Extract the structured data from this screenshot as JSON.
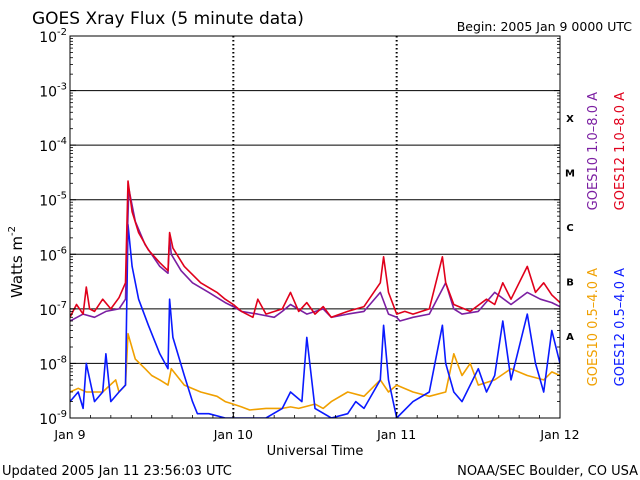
{
  "chart_data": {
    "type": "line",
    "title": "GOES Xray Flux (5 minute data)",
    "begin_label": "Begin:  2005 Jan 9 0000 UTC",
    "xlabel": "Universal Time",
    "ylabel_main": "Watts m",
    "ylabel_exp": "-2",
    "y_scale": "log",
    "ylim": [
      1e-09,
      0.01
    ],
    "y_ticks": [
      {
        "base": "10",
        "exp": "-2",
        "value": 0.01
      },
      {
        "base": "10",
        "exp": "-3",
        "value": 0.001
      },
      {
        "base": "10",
        "exp": "-4",
        "value": 0.0001
      },
      {
        "base": "10",
        "exp": "-5",
        "value": 1e-05
      },
      {
        "base": "10",
        "exp": "-6",
        "value": 1e-06
      },
      {
        "base": "10",
        "exp": "-7",
        "value": 1e-07
      },
      {
        "base": "10",
        "exp": "-8",
        "value": 1e-08
      },
      {
        "base": "10",
        "exp": "-9",
        "value": 1e-09
      }
    ],
    "x_unit": "day since 2005 Jan 9 00:00 UTC",
    "xlim": [
      0,
      3
    ],
    "x_ticks": [
      {
        "label": "Jan 9",
        "value": 0
      },
      {
        "label": "Jan 10",
        "value": 1
      },
      {
        "label": "Jan 11",
        "value": 2
      },
      {
        "label": "Jan 12",
        "value": 3
      }
    ],
    "grid": true,
    "flare_classes": [
      {
        "label": "X",
        "value": 0.0001
      },
      {
        "label": "M",
        "value": 1e-05
      },
      {
        "label": "C",
        "value": 1e-06
      },
      {
        "label": "B",
        "value": 1e-07
      },
      {
        "label": "A",
        "value": 1e-08
      }
    ],
    "series": [
      {
        "name": "GOES10 1.0–8.0 A",
        "color": "#7b1fa2",
        "x": [
          0,
          0.08,
          0.15,
          0.22,
          0.3,
          0.34,
          0.36,
          0.4,
          0.46,
          0.55,
          0.6,
          0.61,
          0.62,
          0.68,
          0.75,
          0.85,
          0.95,
          1.0,
          1.05,
          1.15,
          1.25,
          1.3,
          1.35,
          1.45,
          1.55,
          1.6,
          1.7,
          1.8,
          1.9,
          1.95,
          2.0,
          2.02,
          2.1,
          2.2,
          2.3,
          2.35,
          2.4,
          2.5,
          2.6,
          2.7,
          2.8,
          2.88,
          2.95,
          3.0
        ],
        "y": [
          6e-08,
          8e-08,
          7e-08,
          9e-08,
          1e-07,
          1.5e-07,
          1.6e-05,
          4e-06,
          1.5e-06,
          6e-07,
          4.5e-07,
          2e-06,
          1e-06,
          5e-07,
          3e-07,
          2e-07,
          1.3e-07,
          1.1e-07,
          9e-08,
          8e-08,
          7e-08,
          9e-08,
          1.2e-07,
          8e-08,
          1e-07,
          7e-08,
          8e-08,
          9e-08,
          2e-07,
          8e-08,
          7e-08,
          6e-08,
          7e-08,
          8e-08,
          3e-07,
          1e-07,
          8e-08,
          9e-08,
          2e-07,
          1.2e-07,
          2e-07,
          1.5e-07,
          1.3e-07,
          1.1e-07
        ]
      },
      {
        "name": "GOES12 1.0–8.0 A",
        "color": "#e0001b",
        "x": [
          0,
          0.04,
          0.08,
          0.1,
          0.12,
          0.15,
          0.2,
          0.25,
          0.3,
          0.34,
          0.355,
          0.38,
          0.42,
          0.48,
          0.55,
          0.6,
          0.61,
          0.63,
          0.7,
          0.8,
          0.9,
          0.95,
          1.0,
          1.05,
          1.12,
          1.15,
          1.2,
          1.3,
          1.35,
          1.4,
          1.45,
          1.5,
          1.55,
          1.6,
          1.7,
          1.8,
          1.9,
          1.92,
          1.95,
          2.0,
          2.05,
          2.1,
          2.2,
          2.28,
          2.3,
          2.35,
          2.45,
          2.55,
          2.6,
          2.65,
          2.7,
          2.8,
          2.85,
          2.9,
          2.95,
          3.0
        ],
        "y": [
          7e-08,
          1.2e-07,
          8e-08,
          2.5e-07,
          1e-07,
          9e-08,
          1.5e-07,
          1e-07,
          1.6e-07,
          3e-07,
          2.2e-05,
          6e-06,
          2.5e-06,
          1.2e-06,
          7e-07,
          5e-07,
          2.5e-06,
          1.3e-06,
          6e-07,
          3e-07,
          2e-07,
          1.5e-07,
          1.2e-07,
          9e-08,
          7e-08,
          1.5e-07,
          8e-08,
          1e-07,
          2e-07,
          9e-08,
          1.3e-07,
          8e-08,
          1.1e-07,
          7e-08,
          9e-08,
          1.1e-07,
          3e-07,
          9e-07,
          2e-07,
          8e-08,
          9e-08,
          8e-08,
          1e-07,
          9e-07,
          3e-07,
          1.2e-07,
          9e-08,
          1.5e-07,
          1.2e-07,
          3e-07,
          1.5e-07,
          6e-07,
          2e-07,
          3e-07,
          1.8e-07,
          1.3e-07
        ]
      },
      {
        "name": "GOES10 0.5–4.0 A",
        "color": "#f0a000",
        "x": [
          0,
          0.05,
          0.1,
          0.2,
          0.28,
          0.3,
          0.34,
          0.355,
          0.4,
          0.46,
          0.5,
          0.55,
          0.6,
          0.62,
          0.7,
          0.8,
          0.9,
          0.95,
          1.0,
          1.05,
          1.1,
          1.2,
          1.3,
          1.35,
          1.4,
          1.5,
          1.55,
          1.6,
          1.7,
          1.8,
          1.9,
          1.95,
          2.0,
          2.1,
          2.2,
          2.3,
          2.35,
          2.4,
          2.45,
          2.5,
          2.6,
          2.7,
          2.8,
          2.9,
          2.95,
          3.0
        ],
        "y": [
          3e-09,
          3.5e-09,
          3e-09,
          3e-09,
          5e-09,
          3e-09,
          4e-09,
          3.5e-08,
          1.2e-08,
          8e-09,
          6e-09,
          5e-09,
          4e-09,
          8e-09,
          4e-09,
          3e-09,
          2.5e-09,
          2e-09,
          1.8e-09,
          1.6e-09,
          1.4e-09,
          1.5e-09,
          1.5e-09,
          1.6e-09,
          1.5e-09,
          1.8e-09,
          1.5e-09,
          2e-09,
          3e-09,
          2.5e-09,
          5e-09,
          3e-09,
          4e-09,
          3e-09,
          2.5e-09,
          3e-09,
          1.5e-08,
          6e-09,
          1e-08,
          4e-09,
          5e-09,
          8e-09,
          6e-09,
          5e-09,
          7e-09,
          6e-09
        ]
      },
      {
        "name": "GOES12 0.5–4.0 A",
        "color": "#0a1aff",
        "x": [
          0,
          0.05,
          0.08,
          0.1,
          0.15,
          0.2,
          0.22,
          0.25,
          0.3,
          0.34,
          0.355,
          0.38,
          0.42,
          0.48,
          0.55,
          0.6,
          0.61,
          0.63,
          0.7,
          0.75,
          0.78,
          0.85,
          0.95,
          1.0,
          1.2,
          1.3,
          1.35,
          1.42,
          1.45,
          1.5,
          1.6,
          1.7,
          1.75,
          1.8,
          1.9,
          1.92,
          1.95,
          2.0,
          2.1,
          2.2,
          2.28,
          2.3,
          2.35,
          2.4,
          2.5,
          2.55,
          2.6,
          2.65,
          2.7,
          2.8,
          2.85,
          2.9,
          2.95,
          3.0
        ],
        "y": [
          2e-09,
          3e-09,
          1.5e-09,
          1e-08,
          2e-09,
          3e-09,
          1.5e-08,
          2e-09,
          3e-09,
          4e-09,
          3.5e-06,
          6e-07,
          1.5e-07,
          5e-08,
          1.5e-08,
          8e-09,
          1.5e-07,
          3e-08,
          6e-09,
          2e-09,
          1.2e-09,
          1.2e-09,
          1e-09,
          1e-09,
          1e-09,
          1.5e-09,
          3e-09,
          2e-09,
          3e-08,
          1.5e-09,
          1e-09,
          1.2e-09,
          2e-09,
          1.5e-09,
          5e-09,
          5e-08,
          5e-09,
          1e-09,
          2e-09,
          3e-09,
          5e-08,
          1e-08,
          3e-09,
          2e-09,
          8e-09,
          3e-09,
          6e-09,
          6e-08,
          5e-09,
          8e-08,
          1e-08,
          3e-09,
          4e-08,
          1e-08
        ]
      }
    ],
    "legend": [
      {
        "text": "GOES10 1.0–8.0 A",
        "color": "#7b1fa2"
      },
      {
        "text": "GOES12 1.0–8.0 A",
        "color": "#e0001b"
      },
      {
        "text": "GOES10 0.5–4.0 A",
        "color": "#f0a000"
      },
      {
        "text": "GOES12 0.5–4.0 A",
        "color": "#0a1aff"
      }
    ],
    "legend_placement": "right, rotated vertical",
    "footer_left": "Updated 2005 Jan 11 23:56:03 UTC",
    "footer_right": "NOAA/SEC Boulder, CO USA"
  }
}
